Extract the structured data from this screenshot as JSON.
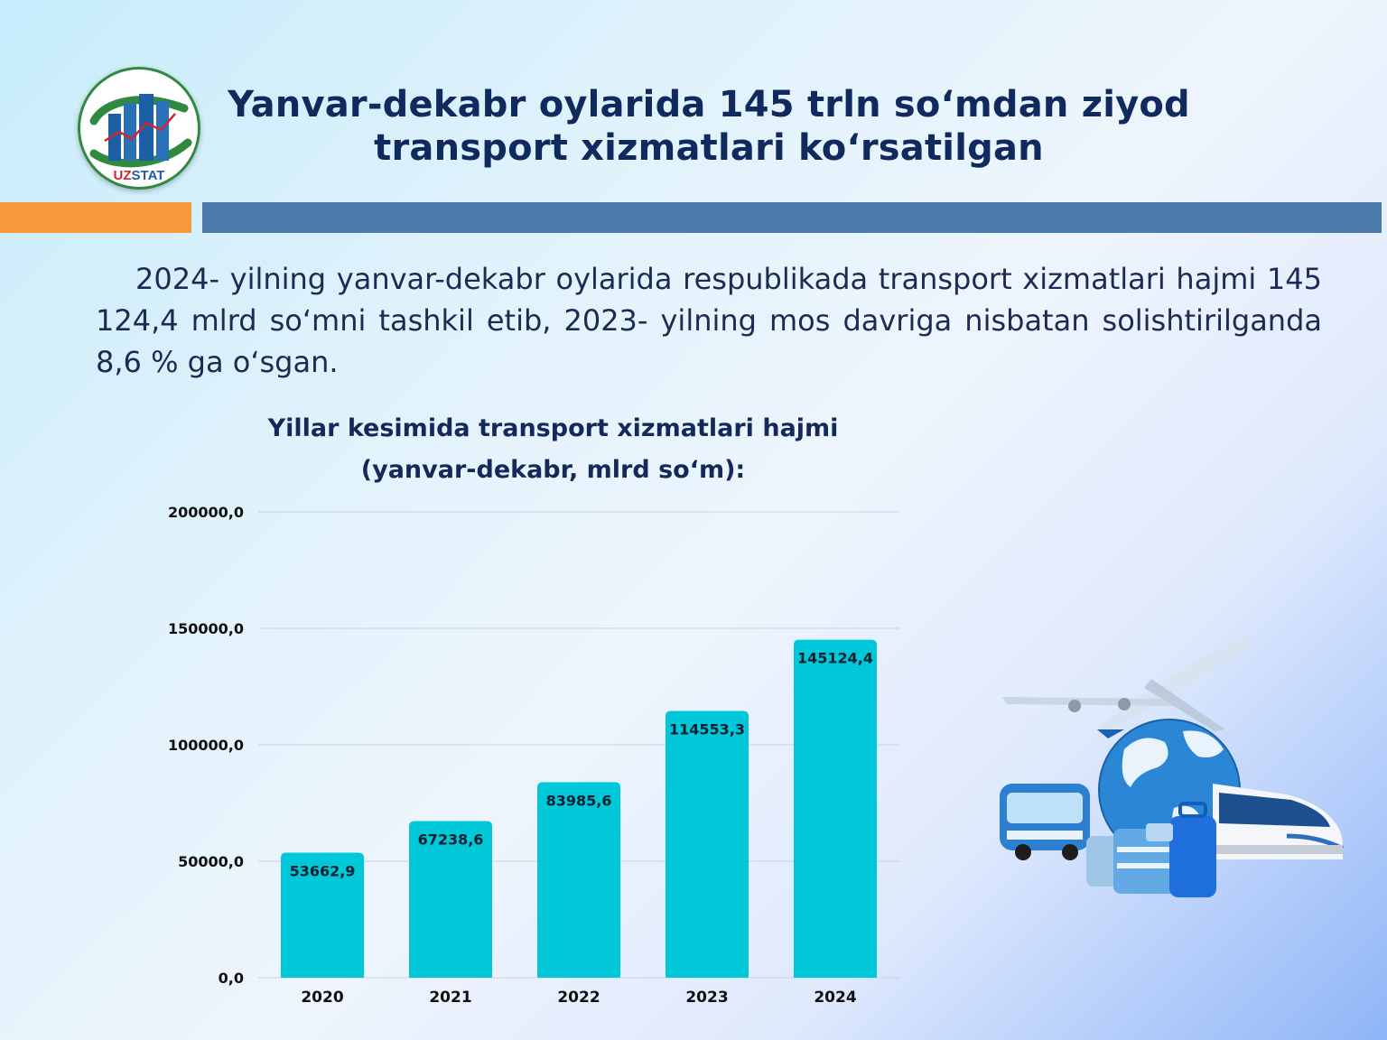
{
  "logo": {
    "text_uz": "UZ",
    "text_stat": "STAT"
  },
  "header": {
    "title_line1": "Yanvar-dekabr oylarida 145 trln soʻmdan ziyod",
    "title_line2": "transport xizmatlari koʻrsatilgan"
  },
  "body": {
    "paragraph": "2024- yilning yanvar-dekabr oylarida respublikada transport xizmatlari hajmi 145 124,4 mlrd soʻmni tashkil etib, 2023- yilning mos davriga nisbatan solishtirilganda 8,6 % ga oʻsgan."
  },
  "colors": {
    "title": "#102a5e",
    "accent_orange": "#f7993a",
    "accent_blue": "#4a7bab",
    "bar": "#00c8d8"
  },
  "illustration": {
    "icons": [
      "airplane-icon",
      "globe-icon",
      "bus-icon",
      "train-icon",
      "suitcase-icon"
    ]
  },
  "chart_data": {
    "type": "bar",
    "title": "Yillar kesimida transport xizmatlari hajmi",
    "subtitle": "(yanvar-dekabr, mlrd soʻm):",
    "categories": [
      "2020",
      "2021",
      "2022",
      "2023",
      "2024"
    ],
    "values": [
      53662.9,
      67238.6,
      83985.6,
      114553.3,
      145124.4
    ],
    "value_labels": [
      "53662,9",
      "67238,6",
      "83985,6",
      "114553,3",
      "145124,4"
    ],
    "y_ticks": [
      0,
      50000,
      100000,
      150000,
      200000
    ],
    "y_tick_labels": [
      "0,0",
      "50000,0",
      "100000,0",
      "150000,0",
      "200000,0"
    ],
    "ylim": [
      0,
      200000
    ],
    "xlabel": "",
    "ylabel": "",
    "grid": true,
    "legend": "none"
  }
}
